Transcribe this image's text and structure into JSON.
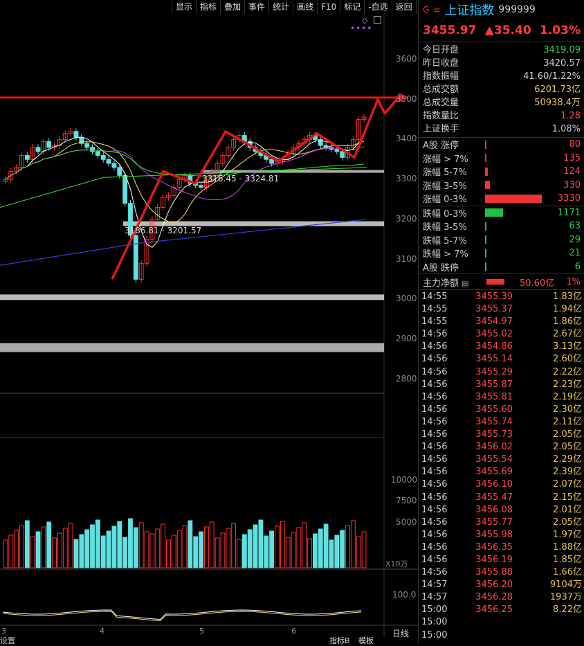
{
  "toolbar": [
    "显示",
    "指标",
    "叠加",
    "事件",
    "统计",
    "画线",
    "F10",
    "标记",
    "-自选",
    "返回"
  ],
  "header": {
    "g": "G",
    "menu": "≡",
    "name": "上证指数",
    "code": "999999"
  },
  "quote": {
    "price": "3455.97",
    "change": "▲35.40",
    "pct": "1.03%"
  },
  "stats": [
    {
      "k": "今日开盘",
      "v": "3419.09",
      "c": "#2fd24b"
    },
    {
      "k": "昨日收盘",
      "v": "3420.57",
      "c": "#ccc"
    },
    {
      "k": "指数振幅",
      "v": "41.60/1.22%",
      "c": "#ccc"
    },
    {
      "k": "总成交额",
      "v": "6201.73亿",
      "c": "#e6c35a"
    },
    {
      "k": "总成交量",
      "v": "50938.4万",
      "c": "#e6c35a"
    },
    {
      "k": "指数量比",
      "v": "1.28",
      "c": "#ff4a4a"
    },
    {
      "k": "上证换手",
      "v": "1.08%",
      "c": "#ccc"
    }
  ],
  "breadth_up": [
    {
      "k": "A股 涨停",
      "v": "80",
      "frac": 0.0
    },
    {
      "k": "涨幅 > 7%",
      "v": "135",
      "frac": 0.02
    },
    {
      "k": "涨幅 5-7%",
      "v": "124",
      "frac": 0.03
    },
    {
      "k": "涨幅 3-5%",
      "v": "330",
      "frac": 0.06
    },
    {
      "k": "涨幅 0-3%",
      "v": "3330",
      "frac": 0.68
    }
  ],
  "breadth_down": [
    {
      "k": "跌幅 0-3%",
      "v": "1171",
      "frac": 0.22
    },
    {
      "k": "跌幅 3-5%",
      "v": "63",
      "frac": 0.01
    },
    {
      "k": "跌幅 5-7%",
      "v": "29",
      "frac": 0.01
    },
    {
      "k": "跌幅 > 7%",
      "v": "21",
      "frac": 0.01
    },
    {
      "k": "A股 跌停",
      "v": "6",
      "frac": 0.005
    }
  ],
  "mainflow": {
    "k": "主力净额",
    "icon": "▤",
    "v": "50.60亿",
    "pct": "1%"
  },
  "ticks": [
    [
      "14:55",
      "3455.39",
      "1.83亿"
    ],
    [
      "14:55",
      "3455.37",
      "1.94亿"
    ],
    [
      "14:55",
      "3454.97",
      "1.86亿"
    ],
    [
      "14:56",
      "3455.02",
      "2.67亿"
    ],
    [
      "14:56",
      "3454.86",
      "3.13亿"
    ],
    [
      "14:56",
      "3455.14",
      "2.60亿"
    ],
    [
      "14:56",
      "3455.29",
      "2.22亿"
    ],
    [
      "14:56",
      "3455.87",
      "2.23亿"
    ],
    [
      "14:56",
      "3455.81",
      "2.19亿"
    ],
    [
      "14:56",
      "3455.60",
      "2.30亿"
    ],
    [
      "14:56",
      "3455.74",
      "2.11亿"
    ],
    [
      "14:56",
      "3455.73",
      "2.05亿"
    ],
    [
      "14:56",
      "3456.02",
      "2.05亿"
    ],
    [
      "14:56",
      "3455.54",
      "2.29亿"
    ],
    [
      "14:56",
      "3455.69",
      "2.39亿"
    ],
    [
      "14:56",
      "3456.10",
      "2.07亿"
    ],
    [
      "14:56",
      "3455.47",
      "2.15亿"
    ],
    [
      "14:56",
      "3456.08",
      "2.01亿"
    ],
    [
      "14:56",
      "3455.77",
      "2.05亿"
    ],
    [
      "14:56",
      "3455.98",
      "1.97亿"
    ],
    [
      "14:56",
      "3456.35",
      "1.88亿"
    ],
    [
      "14:56",
      "3456.19",
      "1.85亿"
    ],
    [
      "14:56",
      "3455.88",
      "1.66亿"
    ],
    [
      "14:57",
      "3456.20",
      "9104万"
    ],
    [
      "14:57",
      "3456.28",
      "1937万"
    ],
    [
      "15:00",
      "3456.25",
      "8.22亿"
    ],
    [
      "15:00",
      "",
      ""
    ],
    [
      "15:00",
      "",
      ""
    ]
  ],
  "chart": {
    "yticks": [
      "3600",
      "3500",
      "3400",
      "3300",
      "3200",
      "3100",
      "3000",
      "2900",
      "2800"
    ],
    "vticks": [
      "10000",
      "7500",
      "5000"
    ],
    "vol_unit": "X10万",
    "ind_tick": "100.0",
    "xticks": [
      "3",
      "4",
      "5",
      "6"
    ],
    "annot1": "3316.45 - 3324.81",
    "annot2": "3186.81 - 3201.57",
    "bottom": {
      "left": "设置",
      "btn1": "指标B",
      "btn2": "模板",
      "right": "日线"
    }
  },
  "chart_data": {
    "type": "candlestick",
    "ylim": [
      2750,
      3650
    ],
    "levels": [
      3505,
      3320,
      3190,
      3005,
      2880
    ],
    "annotations": [
      "3316.45 - 3324.81",
      "3186.81 - 3201.57"
    ]
  }
}
